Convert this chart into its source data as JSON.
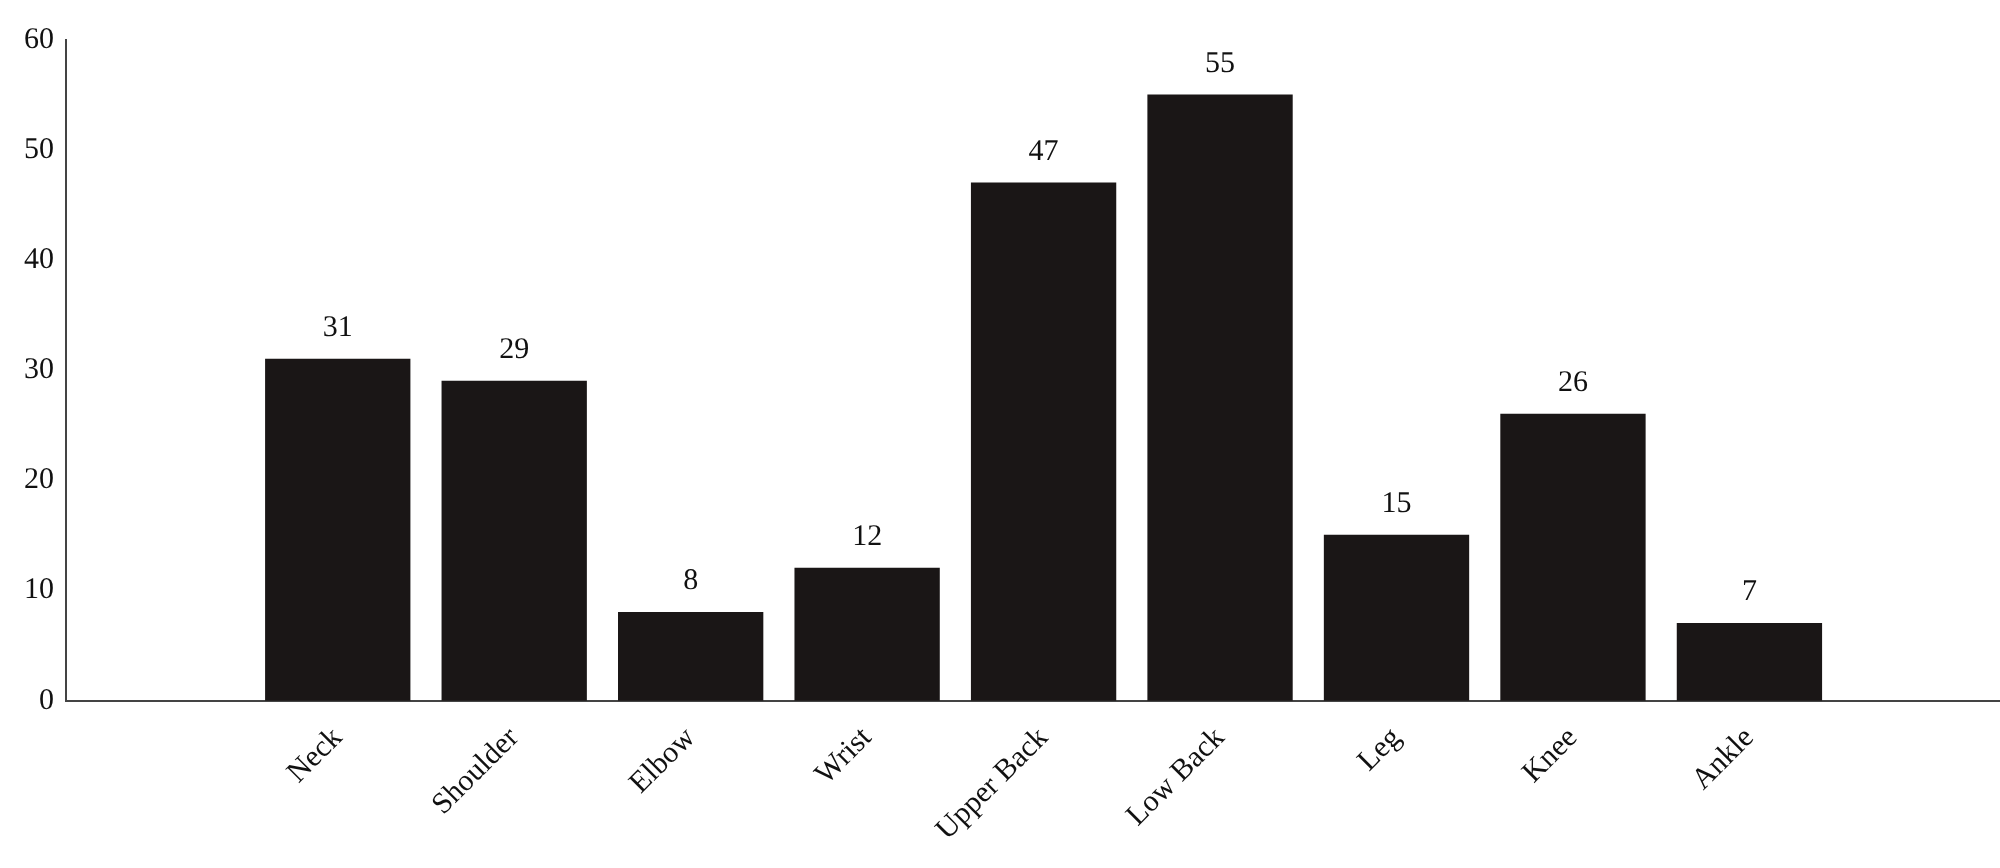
{
  "chart_data": {
    "type": "bar",
    "categories": [
      "Neck",
      "Shoulder",
      "Elbow",
      "Wrist",
      "Upper Back",
      "Low Back",
      "Leg",
      "Knee",
      "Ankle"
    ],
    "values": [
      31,
      29,
      8,
      12,
      47,
      55,
      15,
      26,
      7
    ],
    "color": "#1a1616",
    "ylim": [
      0,
      60
    ],
    "yticks": [
      0,
      10,
      20,
      30,
      40,
      50,
      60
    ],
    "grid": false,
    "legend": false,
    "data_labels": true
  }
}
